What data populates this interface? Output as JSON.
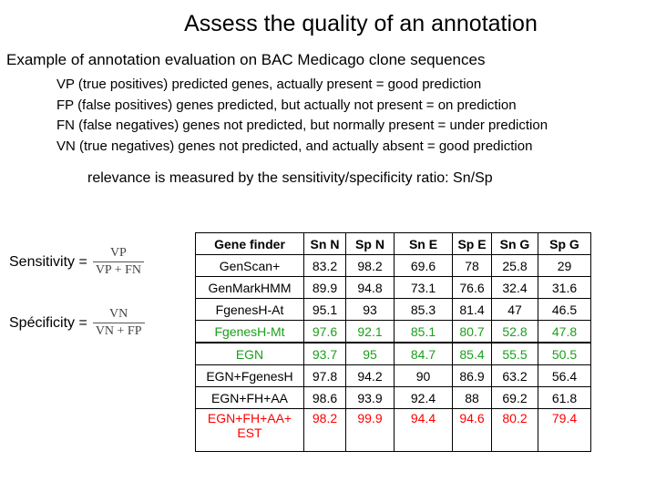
{
  "title": "Assess the quality of an annotation",
  "subtitle": "Example of annotation evaluation on BAC Medicago clone sequences",
  "definitions": [
    "VP (true positives) predicted genes, actually present = good prediction",
    "FP (false positives) genes predicted, but actually not present = on prediction",
    "FN (false negatives) genes not predicted, but normally present = under prediction",
    "VN (true negatives) genes not predicted, and actually absent = good prediction"
  ],
  "relevance": "relevance is measured by the sensitivity/specificity ratio: Sn/Sp",
  "sensitivity": {
    "label": "Sensitivity =",
    "numerator": "VP",
    "denominator": "VP + FN"
  },
  "specificity": {
    "label": "Spécificity =",
    "numerator": "VN",
    "denominator": "VN + FP"
  },
  "table": {
    "headers": [
      "Gene finder",
      "Sn N",
      "Sp N",
      "Sn E",
      "Sp E",
      "Sn G",
      "Sp G"
    ],
    "rows": [
      {
        "cells": [
          "GenScan+",
          "83.2",
          "98.2",
          "69.6",
          "78",
          "25.8",
          "29"
        ],
        "style": ""
      },
      {
        "cells": [
          "GenMarkHMM",
          "89.9",
          "94.8",
          "73.1",
          "76.6",
          "32.4",
          "31.6"
        ],
        "style": ""
      },
      {
        "cells": [
          "FgenesH-At",
          "95.1",
          "93",
          "85.3",
          "81.4",
          "47",
          "46.5"
        ],
        "style": ""
      },
      {
        "cells": [
          "FgenesH-Mt",
          "97.6",
          "92.1",
          "85.1",
          "80.7",
          "52.8",
          "47.8"
        ],
        "style": "green sep-below"
      },
      {
        "cells": [
          "EGN",
          "93.7",
          "95",
          "84.7",
          "85.4",
          "55.5",
          "50.5"
        ],
        "style": "green"
      },
      {
        "cells": [
          "EGN+FgenesH",
          "97.8",
          "94.2",
          "90",
          "86.9",
          "63.2",
          "56.4"
        ],
        "style": ""
      },
      {
        "cells": [
          "EGN+FH+AA",
          "98.6",
          "93.9",
          "92.4",
          "88",
          "69.2",
          "61.8"
        ],
        "style": ""
      },
      {
        "cells": [
          "EGN+FH+AA+ EST",
          "98.2",
          "99.9",
          "94.4",
          "94.6",
          "80.2",
          "79.4"
        ],
        "style": "red tall"
      }
    ]
  },
  "colors": {
    "highlight_green": "#1aa01a",
    "highlight_red": "#ff0000"
  }
}
